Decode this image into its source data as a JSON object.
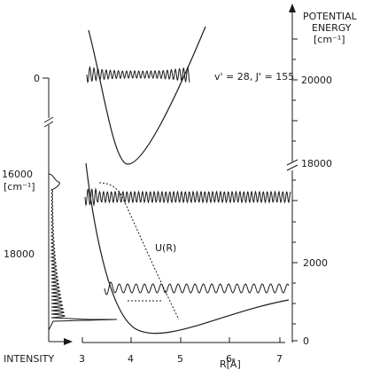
{
  "potential_axis": {
    "title_line1": "POTENTIAL",
    "title_line2": "ENERGY",
    "unit": "[cm⁻¹]",
    "upper_ticks": [
      "20000",
      "18000"
    ],
    "lower_ticks": [
      "2000",
      "0"
    ]
  },
  "r_axis": {
    "label": "R[Å]",
    "ticks": [
      "3",
      "4",
      "5",
      "6",
      "7"
    ]
  },
  "intensity_axis": {
    "label": "INTENSITY",
    "zero_label": "0",
    "tick_16000": "16000",
    "unit": "[cm⁻¹]",
    "tick_18000": "18000"
  },
  "annotations": {
    "upper_state": "v' = 28, J' = 155",
    "potential": "U(R)"
  },
  "icons": [
    "axis-break-icon",
    "arrow-up-icon",
    "arrow-right-icon"
  ]
}
